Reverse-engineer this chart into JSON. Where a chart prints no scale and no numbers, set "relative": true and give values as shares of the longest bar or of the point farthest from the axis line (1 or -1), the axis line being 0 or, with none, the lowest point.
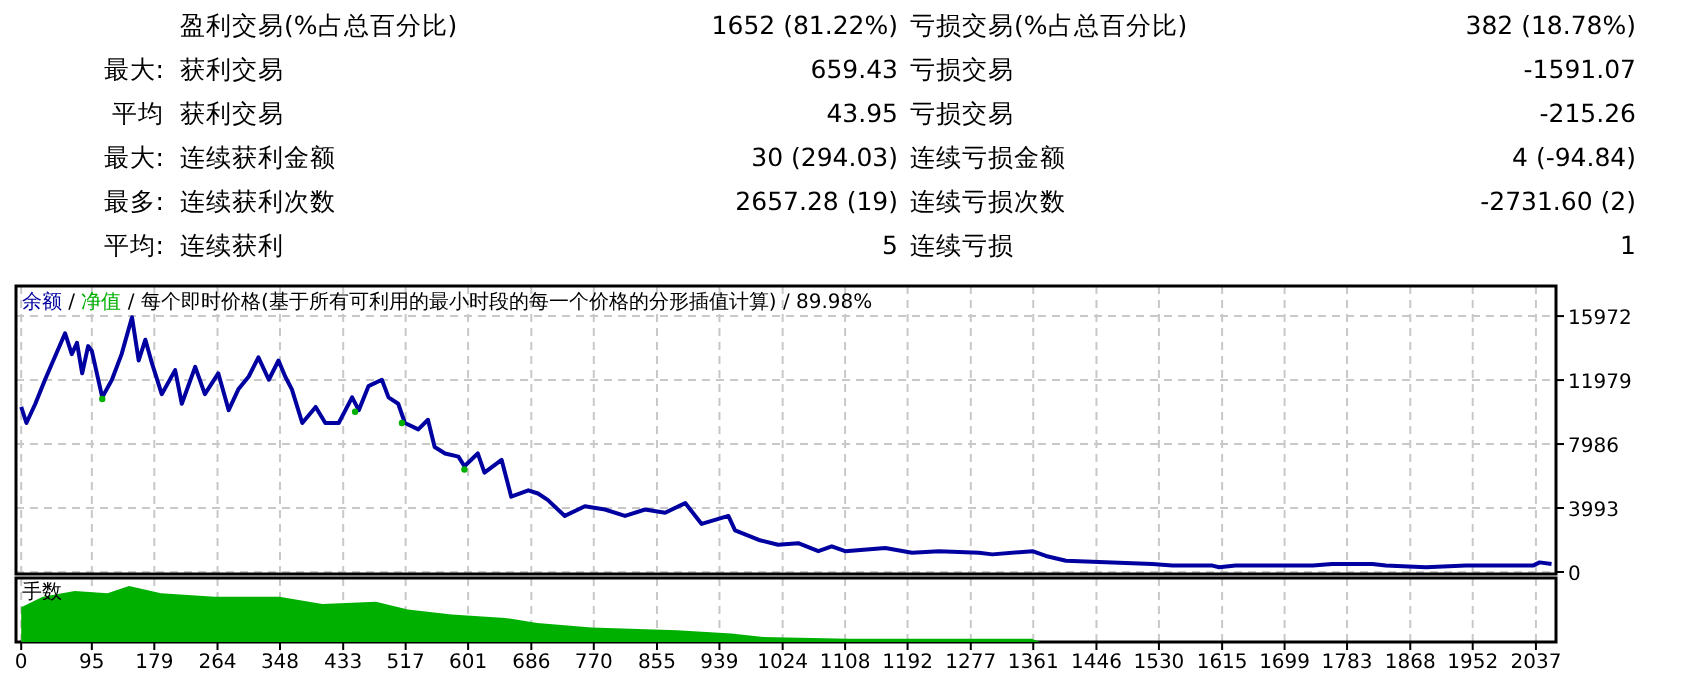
{
  "chart_data": [
    {
      "type": "other",
      "annotations": [
        "盈利交易(%占总百分比)",
        "1652 (81.22%)",
        "亏损交易(%占总百分比)",
        "382 (18.78%)",
        "最大:",
        "获利交易",
        "659.43",
        "亏损交易",
        "-1591.07",
        "平均",
        "获利交易",
        "43.95",
        "亏损交易",
        "-215.26",
        "最大:",
        "连续获利金额",
        "30 (294.03)",
        "连续亏损金额",
        "4 (-94.84)",
        "最多:",
        "连续获利次数",
        "2657.28 (19)",
        "连续亏损次数",
        "-2731.60 (2)",
        "平均:",
        "连续获利",
        "5",
        "连续亏损",
        "1"
      ]
    },
    {
      "type": "line",
      "title": "每个即时价格(基于所有可利用的最小时段的每一个价格的分形插值计算) / 89.98%",
      "annotations": [
        "/",
        "/"
      ],
      "legend": "top left",
      "grid": true,
      "tick_labels": "y",
      "xlim": [
        -7,
        2064
      ],
      "xticks": [
        0,
        95,
        179,
        264,
        348,
        433,
        517,
        601,
        686,
        770,
        855,
        939,
        1024,
        1108,
        1192,
        1277,
        1361,
        1446,
        1530,
        1615,
        1699,
        1783,
        1868,
        1952,
        2037
      ],
      "ylim": [
        0,
        17850
      ],
      "yticks": [
        0,
        3993,
        7986,
        11979,
        15972
      ],
      "series": [
        {
          "name": "余额",
          "color": "#0000a0",
          "x": [
            0,
            7,
            19,
            32,
            59,
            68,
            75,
            82,
            90,
            95,
            109,
            122,
            135,
            149,
            158,
            167,
            176,
            189,
            207,
            216,
            234,
            247,
            265,
            279,
            292,
            306,
            319,
            333,
            346,
            355,
            364,
            378,
            396,
            409,
            427,
            445,
            454,
            467,
            485,
            494,
            507,
            516,
            534,
            547,
            556,
            570,
            588,
            596,
            614,
            623,
            646,
            659,
            682,
            695,
            708,
            731,
            758,
            785,
            812,
            839,
            866,
            893,
            915,
            951,
            960,
            992,
            1018,
            1045,
            1072,
            1090,
            1108,
            1162,
            1198,
            1234,
            1288,
            1306,
            1360,
            1378,
            1405,
            1521,
            1548,
            1602,
            1611,
            1633,
            1737,
            1763,
            1817,
            1835,
            1889,
            1943,
            2033,
            2042,
            2058
          ],
          "values": [
            10300,
            9300,
            10500,
            12000,
            14900,
            13600,
            14300,
            12400,
            14100,
            13800,
            10900,
            12000,
            13600,
            15900,
            13200,
            14500,
            13000,
            11100,
            12600,
            10500,
            12800,
            11100,
            12400,
            10100,
            11400,
            12200,
            13400,
            12000,
            13200,
            12200,
            11400,
            9300,
            10300,
            9300,
            9300,
            10900,
            10100,
            11600,
            12000,
            10900,
            10500,
            9300,
            8900,
            9500,
            7800,
            7400,
            7200,
            6600,
            7400,
            6200,
            7000,
            4700,
            5100,
            4900,
            4500,
            3500,
            4100,
            3900,
            3500,
            3900,
            3700,
            4300,
            3000,
            3500,
            2600,
            2000,
            1700,
            1800,
            1300,
            1600,
            1300,
            1500,
            1200,
            1300,
            1200,
            1100,
            1300,
            1000,
            700,
            500,
            400,
            400,
            300,
            400,
            400,
            500,
            500,
            400,
            300,
            400,
            400,
            600,
            500
          ]
        },
        {
          "name": "净值",
          "color": "#00b000",
          "type": "scatter",
          "marker": "circle",
          "x": [
            109,
            449,
            512,
            596
          ],
          "values": [
            10800,
            10000,
            9300,
            6400
          ]
        }
      ]
    },
    {
      "type": "area",
      "title": "手数",
      "relative": true,
      "grid": "x",
      "tick_labels": "x",
      "color": "#00b000",
      "xlim": [
        -7,
        2064
      ],
      "xticks": [
        0,
        95,
        179,
        264,
        348,
        433,
        517,
        601,
        686,
        770,
        855,
        939,
        1024,
        1108,
        1192,
        1277,
        1361,
        1446,
        1530,
        1615,
        1699,
        1783,
        1868,
        1952,
        2037
      ],
      "x": [
        0,
        29,
        72,
        116,
        145,
        188,
        260,
        347,
        405,
        477,
        520,
        579,
        651,
        694,
        767,
        882,
        955,
        998,
        1113,
        1359,
        1370
      ],
      "values": [
        0.62,
        0.81,
        0.91,
        0.87,
        1.0,
        0.87,
        0.81,
        0.81,
        0.68,
        0.72,
        0.58,
        0.49,
        0.43,
        0.34,
        0.26,
        0.21,
        0.15,
        0.09,
        0.06,
        0.06,
        0
      ]
    }
  ]
}
